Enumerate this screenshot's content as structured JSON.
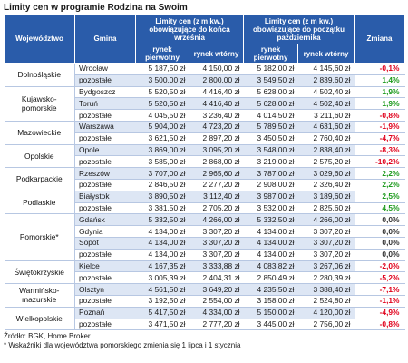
{
  "title": "Limity cen w programie Rodzina na Swoim",
  "headers": {
    "wojewodztwo": "Województwo",
    "gmina": "Gmina",
    "limit_old": "Limity cen (z m kw.) obowiązujące do końca września",
    "limit_new": "Limity cen (z m kw.) obowiązujące do początku października",
    "zmiana": "Zmiana",
    "rynek_pierwotny": "rynek pierwotny",
    "rynek_wtorny": "rynek wtórny"
  },
  "rows": [
    {
      "woj": "Dolnośląskie",
      "gmina": "Wrocław",
      "p_old": "5 187,50 zł",
      "w_old": "4 150,00 zł",
      "p_new": "5 182,00 zł",
      "w_new": "4 145,60 zł",
      "zmiana": "-0,1%",
      "sign": "neg",
      "span": 2
    },
    {
      "woj": "",
      "gmina": "pozostałe",
      "p_old": "3 500,00 zł",
      "w_old": "2 800,00 zł",
      "p_new": "3 549,50 zł",
      "w_new": "2 839,60 zł",
      "zmiana": "1,4%",
      "sign": "pos"
    },
    {
      "woj": "Kujawsko-pomorskie",
      "gmina": "Bydgoszcz",
      "p_old": "5 520,50 zł",
      "w_old": "4 416,40 zł",
      "p_new": "5 628,00 zł",
      "w_new": "4 502,40 zł",
      "zmiana": "1,9%",
      "sign": "pos",
      "span": 3
    },
    {
      "woj": "",
      "gmina": "Toruń",
      "p_old": "5 520,50 zł",
      "w_old": "4 416,40 zł",
      "p_new": "5 628,00 zł",
      "w_new": "4 502,40 zł",
      "zmiana": "1,9%",
      "sign": "pos"
    },
    {
      "woj": "",
      "gmina": "pozostałe",
      "p_old": "4 045,50 zł",
      "w_old": "3 236,40 zł",
      "p_new": "4 014,50 zł",
      "w_new": "3 211,60 zł",
      "zmiana": "-0,8%",
      "sign": "neg"
    },
    {
      "woj": "Mazowieckie",
      "gmina": "Warszawa",
      "p_old": "5 904,00 zł",
      "w_old": "4 723,20 zł",
      "p_new": "5 789,50 zł",
      "w_new": "4 631,60 zł",
      "zmiana": "-1,9%",
      "sign": "neg",
      "span": 2
    },
    {
      "woj": "",
      "gmina": "pozostałe",
      "p_old": "3 621,50 zł",
      "w_old": "2 897,20 zł",
      "p_new": "3 450,50 zł",
      "w_new": "2 760,40 zł",
      "zmiana": "-4,7%",
      "sign": "neg"
    },
    {
      "woj": "Opolskie",
      "gmina": "Opole",
      "p_old": "3 869,00 zł",
      "w_old": "3 095,20 zł",
      "p_new": "3 548,00 zł",
      "w_new": "2 838,40 zł",
      "zmiana": "-8,3%",
      "sign": "neg",
      "span": 2
    },
    {
      "woj": "",
      "gmina": "pozostałe",
      "p_old": "3 585,00 zł",
      "w_old": "2 868,00 zł",
      "p_new": "3 219,00 zł",
      "w_new": "2 575,20 zł",
      "zmiana": "-10,2%",
      "sign": "neg"
    },
    {
      "woj": "Podkarpackie",
      "gmina": "Rzeszów",
      "p_old": "3 707,00 zł",
      "w_old": "2 965,60 zł",
      "p_new": "3 787,00 zł",
      "w_new": "3 029,60 zł",
      "zmiana": "2,2%",
      "sign": "pos",
      "span": 2
    },
    {
      "woj": "",
      "gmina": "pozostałe",
      "p_old": "2 846,50 zł",
      "w_old": "2 277,20 zł",
      "p_new": "2 908,00 zł",
      "w_new": "2 326,40 zł",
      "zmiana": "2,2%",
      "sign": "pos"
    },
    {
      "woj": "Podlaskie",
      "gmina": "Białystok",
      "p_old": "3 890,50 zł",
      "w_old": "3 112,40 zł",
      "p_new": "3 987,00 zł",
      "w_new": "3 189,60 zł",
      "zmiana": "2,5%",
      "sign": "pos",
      "span": 2
    },
    {
      "woj": "",
      "gmina": "pozostałe",
      "p_old": "3 381,50 zł",
      "w_old": "2 705,20 zł",
      "p_new": "3 532,00 zł",
      "w_new": "2 825,60 zł",
      "zmiana": "4,5%",
      "sign": "pos"
    },
    {
      "woj": "Pomorskie*",
      "gmina": "Gdańsk",
      "p_old": "5 332,50 zł",
      "w_old": "4 266,00 zł",
      "p_new": "5 332,50 zł",
      "w_new": "4 266,00 zł",
      "zmiana": "0,0%",
      "sign": "zero",
      "span": 4
    },
    {
      "woj": "",
      "gmina": "Gdynia",
      "p_old": "4 134,00 zł",
      "w_old": "3 307,20 zł",
      "p_new": "4 134,00 zł",
      "w_new": "3 307,20 zł",
      "zmiana": "0,0%",
      "sign": "zero"
    },
    {
      "woj": "",
      "gmina": "Sopot",
      "p_old": "4 134,00 zł",
      "w_old": "3 307,20 zł",
      "p_new": "4 134,00 zł",
      "w_new": "3 307,20 zł",
      "zmiana": "0,0%",
      "sign": "zero"
    },
    {
      "woj": "",
      "gmina": "pozostałe",
      "p_old": "4 134,00 zł",
      "w_old": "3 307,20 zł",
      "p_new": "4 134,00 zł",
      "w_new": "3 307,20 zł",
      "zmiana": "0,0%",
      "sign": "zero"
    },
    {
      "woj": "Świętokrzyskie",
      "gmina": "Kielce",
      "p_old": "4 167,35 zł",
      "w_old": "3 333,88 zł",
      "p_new": "4 083,82 zł",
      "w_new": "3 267,06 zł",
      "zmiana": "-2,0%",
      "sign": "neg",
      "span": 2
    },
    {
      "woj": "",
      "gmina": "pozostałe",
      "p_old": "3 005,39 zł",
      "w_old": "2 404,31 zł",
      "p_new": "2 850,49 zł",
      "w_new": "2 280,39 zł",
      "zmiana": "-5,2%",
      "sign": "neg"
    },
    {
      "woj": "Warmińsko-mazurskie",
      "gmina": "Olsztyn",
      "p_old": "4 561,50 zł",
      "w_old": "3 649,20 zł",
      "p_new": "4 235,50 zł",
      "w_new": "3 388,40 zł",
      "zmiana": "-7,1%",
      "sign": "neg",
      "span": 2
    },
    {
      "woj": "",
      "gmina": "pozostałe",
      "p_old": "3 192,50 zł",
      "w_old": "2 554,00 zł",
      "p_new": "3 158,00 zł",
      "w_new": "2 524,80 zł",
      "zmiana": "-1,1%",
      "sign": "neg"
    },
    {
      "woj": "Wielkopolskie",
      "gmina": "Poznań",
      "p_old": "5 417,50 zł",
      "w_old": "4 334,00 zł",
      "p_new": "5 150,00 zł",
      "w_new": "4 120,00 zł",
      "zmiana": "-4,9%",
      "sign": "neg",
      "span": 2
    },
    {
      "woj": "",
      "gmina": "pozostałe",
      "p_old": "3 471,50 zł",
      "w_old": "2 777,20 zł",
      "p_new": "3 445,00 zł",
      "w_new": "2 756,00 zł",
      "zmiana": "-0,8%",
      "sign": "neg"
    }
  ],
  "source": "Źródło: BGK, Home Broker",
  "footnote": "* Wskaźniki dla województwa pomorskiego zmienia się 1 lipca i 1 stycznia"
}
